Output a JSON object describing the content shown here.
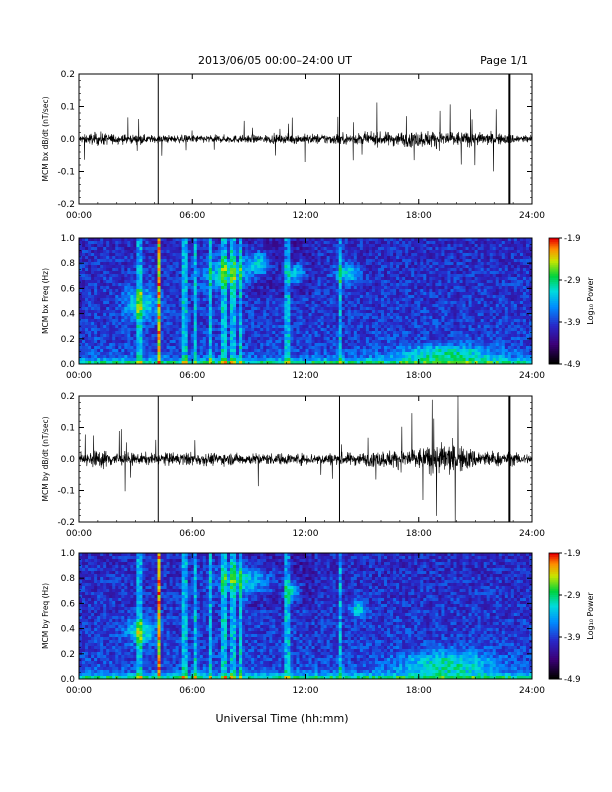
{
  "header": {
    "title": "2013/06/05  00:00–24:00 UT",
    "page": "Page 1/1"
  },
  "footer": {
    "xlabel": "Universal Time (hh:mm)"
  },
  "colors": {
    "line": "#000000",
    "background": "#ffffff"
  },
  "chart_data": [
    {
      "type": "line",
      "title": "",
      "ylabel": "MCM bx dB/dt (nT/sec)",
      "xlabel": "",
      "xlim": [
        0,
        24
      ],
      "ylim": [
        -0.2,
        0.2
      ],
      "x_ticks": [
        "00:00",
        "06:00",
        "12:00",
        "18:00",
        "24:00"
      ],
      "y_ticks": [
        "-0.2",
        "-0.1",
        "0.0",
        "0.1",
        "0.2"
      ],
      "envelope": [
        {
          "x": 0,
          "amp": 0.02
        },
        {
          "x": 1,
          "amp": 0.035
        },
        {
          "x": 2,
          "amp": 0.025
        },
        {
          "x": 4,
          "amp": 0.02
        },
        {
          "x": 6,
          "amp": 0.02
        },
        {
          "x": 9,
          "amp": 0.02
        },
        {
          "x": 12,
          "amp": 0.025
        },
        {
          "x": 15,
          "amp": 0.03
        },
        {
          "x": 17.5,
          "amp": 0.04
        },
        {
          "x": 19,
          "amp": 0.045
        },
        {
          "x": 21,
          "amp": 0.035
        },
        {
          "x": 24,
          "amp": 0.02
        }
      ],
      "spikes": [
        {
          "x": 4.2,
          "ymin": -0.2,
          "ymax": 0.2
        },
        {
          "x": 13.8,
          "ymin": -0.2,
          "ymax": 0.2
        },
        {
          "x": 22.8,
          "ymin": -0.2,
          "ymax": 0.2
        }
      ],
      "series": [
        {
          "values": "dB/dt time series"
        }
      ]
    },
    {
      "type": "heatmap",
      "title": "",
      "ylabel": "MCM bx Freq (Hz)",
      "xlabel": "",
      "xlim": [
        0,
        24
      ],
      "ylim": [
        0.0,
        1.0
      ],
      "x_ticks": [
        "00:00",
        "06:00",
        "12:00",
        "18:00",
        "24:00"
      ],
      "y_ticks": [
        "0.0",
        "0.2",
        "0.4",
        "0.6",
        "0.8",
        "1.0"
      ],
      "colorbar": {
        "label": "Log₁₀ Power",
        "ticks": [
          "-1.9",
          "-2.9",
          "-3.9",
          "-4.9"
        ],
        "range": [
          -4.9,
          -1.9
        ]
      }
    },
    {
      "type": "line",
      "title": "",
      "ylabel": "MCM by dB/dt (nT/sec)",
      "xlabel": "",
      "xlim": [
        0,
        24
      ],
      "ylim": [
        -0.2,
        0.2
      ],
      "x_ticks": [
        "00:00",
        "06:00",
        "12:00",
        "18:00",
        "24:00"
      ],
      "y_ticks": [
        "-0.2",
        "-0.1",
        "0.0",
        "0.1",
        "0.2"
      ],
      "envelope": [
        {
          "x": 0,
          "amp": 0.02
        },
        {
          "x": 1,
          "amp": 0.05
        },
        {
          "x": 3,
          "amp": 0.03
        },
        {
          "x": 6,
          "amp": 0.035
        },
        {
          "x": 9,
          "amp": 0.03
        },
        {
          "x": 12,
          "amp": 0.03
        },
        {
          "x": 15,
          "amp": 0.035
        },
        {
          "x": 18,
          "amp": 0.06
        },
        {
          "x": 19.5,
          "amp": 0.09
        },
        {
          "x": 21,
          "amp": 0.05
        },
        {
          "x": 24,
          "amp": 0.025
        }
      ],
      "spikes": [
        {
          "x": 4.2,
          "ymin": -0.2,
          "ymax": 0.2
        },
        {
          "x": 13.8,
          "ymin": -0.2,
          "ymax": 0.2
        },
        {
          "x": 22.8,
          "ymin": -0.2,
          "ymax": 0.2
        }
      ],
      "series": [
        {
          "values": "dB/dt time series"
        }
      ]
    },
    {
      "type": "heatmap",
      "title": "",
      "ylabel": "MCM by Freq (Hz)",
      "xlabel": "",
      "xlim": [
        0,
        24
      ],
      "ylim": [
        0.0,
        1.0
      ],
      "x_ticks": [
        "00:00",
        "06:00",
        "12:00",
        "18:00",
        "24:00"
      ],
      "y_ticks": [
        "0.0",
        "0.2",
        "0.4",
        "0.6",
        "0.8",
        "1.0"
      ],
      "colorbar": {
        "label": "Log₁₀ Power",
        "ticks": [
          "-1.9",
          "-2.9",
          "-3.9",
          "-4.9"
        ],
        "range": [
          -4.9,
          -1.9
        ]
      }
    }
  ]
}
